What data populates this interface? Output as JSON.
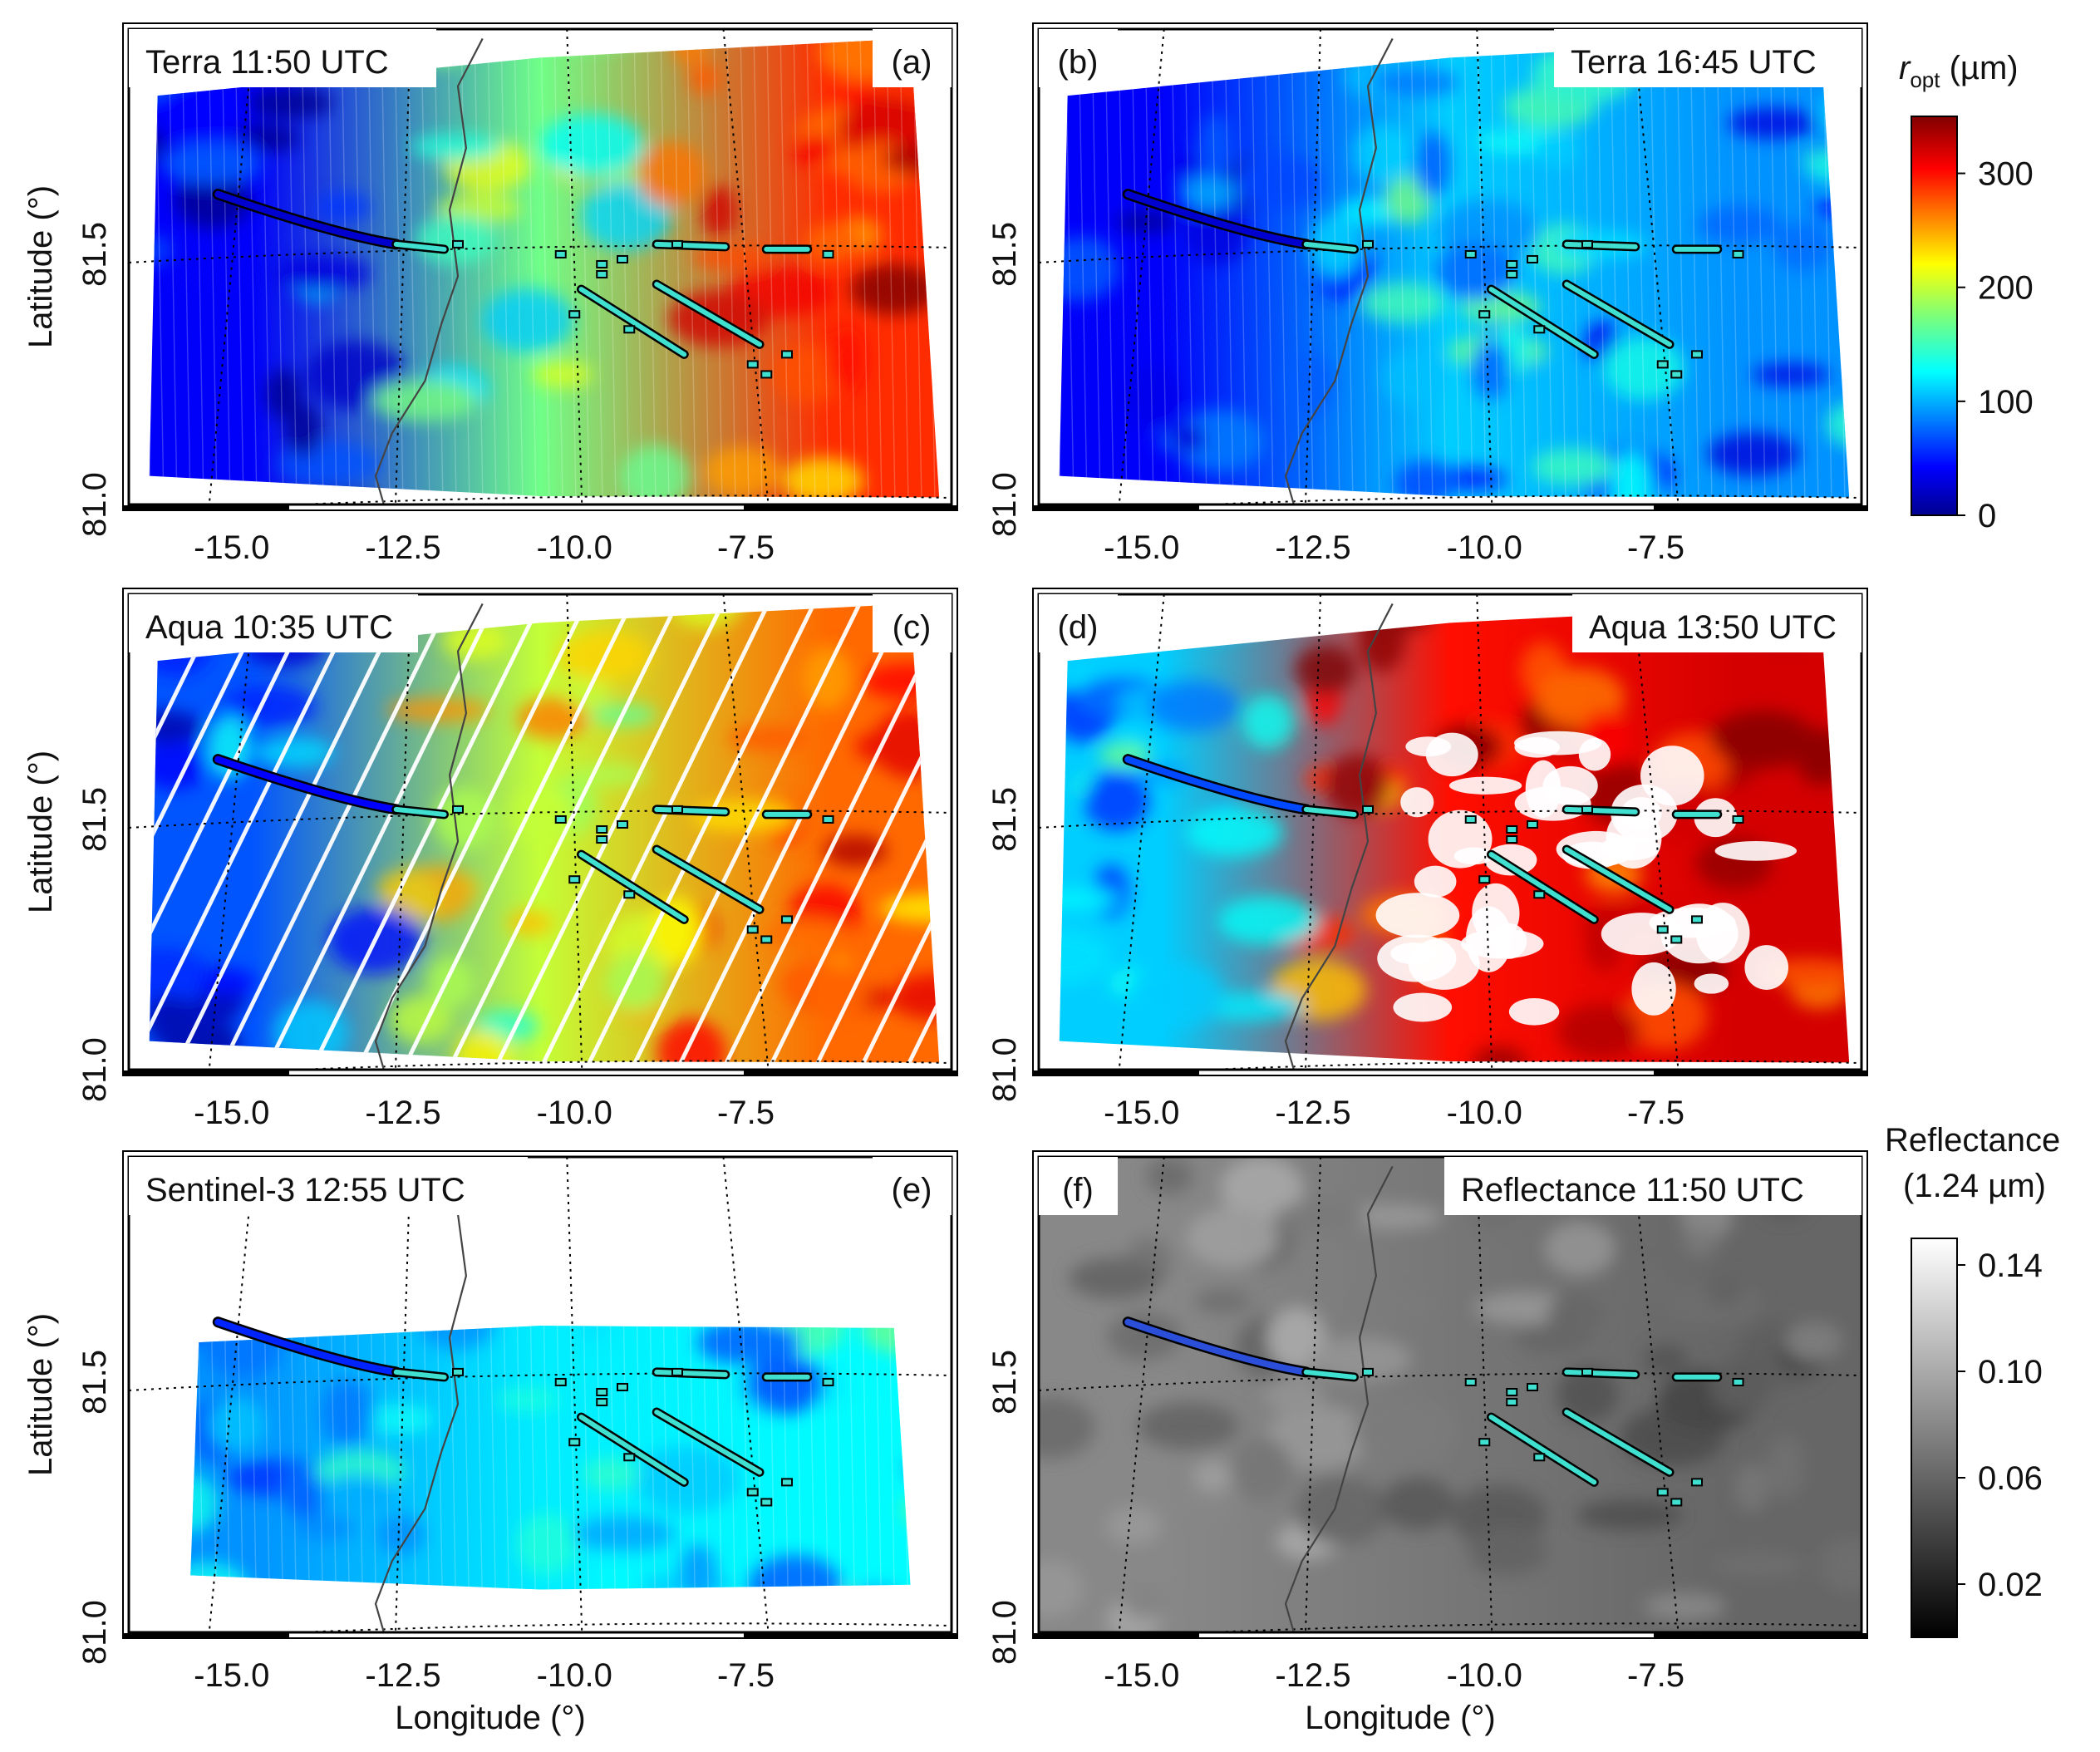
{
  "figure": {
    "xlabel": "Longitude (°)",
    "ylabel": "Latitude (°)",
    "x_ticks": [
      "-15.0",
      "-12.5",
      "-10.0",
      "-7.5"
    ],
    "y_ticks": [
      "81.0",
      "81.5"
    ],
    "colorbar_ropt": {
      "title_main": "r",
      "title_sub": "opt",
      "title_unit": " (µm)",
      "ticks": [
        "300",
        "200",
        "100",
        "0"
      ],
      "tick_values": [
        300,
        200,
        100,
        0
      ],
      "range": [
        0,
        350
      ],
      "colormap": "jet"
    },
    "colorbar_reflectance": {
      "title_line1": "Reflectance",
      "title_line2": "(1.24 µm)",
      "ticks": [
        "0.14",
        "0.10",
        "0.06",
        "0.02"
      ],
      "tick_values": [
        0.14,
        0.1,
        0.06,
        0.02
      ],
      "range": [
        0.0,
        0.15
      ],
      "colormap": "gray"
    },
    "colors": {
      "track_fill": "#40e0d0",
      "track_outline": "#000000",
      "missing": "#ffffff",
      "coastline": "#444444",
      "graticule": "#000000"
    }
  },
  "chart_data": [
    {
      "id": "a",
      "type": "heatmap",
      "letter": "(a)",
      "title": "Terra 11:50 UTC",
      "variable": "r_opt (µm)",
      "xlim": [
        -16.5,
        -4.5
      ],
      "ylim": [
        81.0,
        81.95
      ],
      "x_ticks": [
        -15.0,
        -12.5,
        -10.0,
        -7.5
      ],
      "y_ticks": [
        81.0,
        81.5
      ],
      "field_levels": {
        "west": 40,
        "center": 170,
        "east": 290
      }
    },
    {
      "id": "b",
      "type": "heatmap",
      "letter": "(b)",
      "title": "Terra 16:45 UTC",
      "variable": "r_opt (µm)",
      "xlim": [
        -16.5,
        -4.5
      ],
      "ylim": [
        81.0,
        81.95
      ],
      "x_ticks": [
        -15.0,
        -12.5,
        -10.0,
        -7.5
      ],
      "y_ticks": [
        81.0,
        81.5
      ],
      "field_levels": {
        "west": 40,
        "center": 110,
        "east": 90
      }
    },
    {
      "id": "c",
      "type": "heatmap",
      "letter": "(c)",
      "title": "Aqua 10:35 UTC",
      "variable": "r_opt (µm)",
      "xlim": [
        -16.5,
        -4.5
      ],
      "ylim": [
        81.0,
        81.95
      ],
      "x_ticks": [
        -15.0,
        -12.5,
        -10.0,
        -7.5
      ],
      "y_ticks": [
        81.0,
        81.5
      ],
      "field_levels": {
        "west": 70,
        "center": 200,
        "east": 270
      }
    },
    {
      "id": "d",
      "type": "heatmap",
      "letter": "(d)",
      "title": "Aqua 13:50 UTC",
      "variable": "r_opt (µm)",
      "xlim": [
        -16.5,
        -4.5
      ],
      "ylim": [
        81.0,
        81.95
      ],
      "x_ticks": [
        -15.0,
        -12.5,
        -10.0,
        -7.5
      ],
      "y_ticks": [
        81.0,
        81.5
      ],
      "field_levels": {
        "west": 110,
        "center": 300,
        "east": 320
      }
    },
    {
      "id": "e",
      "type": "heatmap",
      "letter": "(e)",
      "title": "Sentinel-3 12:55 UTC",
      "variable": "r_opt (µm)",
      "xlim": [
        -16.5,
        -4.5
      ],
      "ylim": [
        81.0,
        81.95
      ],
      "x_ticks": [
        -15.0,
        -12.5,
        -10.0,
        -7.5
      ],
      "y_ticks": [
        81.0,
        81.5
      ],
      "field_levels": {
        "west": 90,
        "center": 120,
        "east": 125
      }
    },
    {
      "id": "f",
      "type": "heatmap",
      "letter": "(f)",
      "title": "Reflectance 11:50 UTC",
      "variable": "Reflectance (1.24 µm)",
      "xlim": [
        -16.5,
        -4.5
      ],
      "ylim": [
        81.0,
        81.95
      ],
      "x_ticks": [
        -15.0,
        -12.5,
        -10.0,
        -7.5
      ],
      "y_ticks": [
        81.0,
        81.5
      ],
      "field_levels": {
        "west": 0.08,
        "center": 0.07,
        "east": 0.06
      }
    }
  ]
}
